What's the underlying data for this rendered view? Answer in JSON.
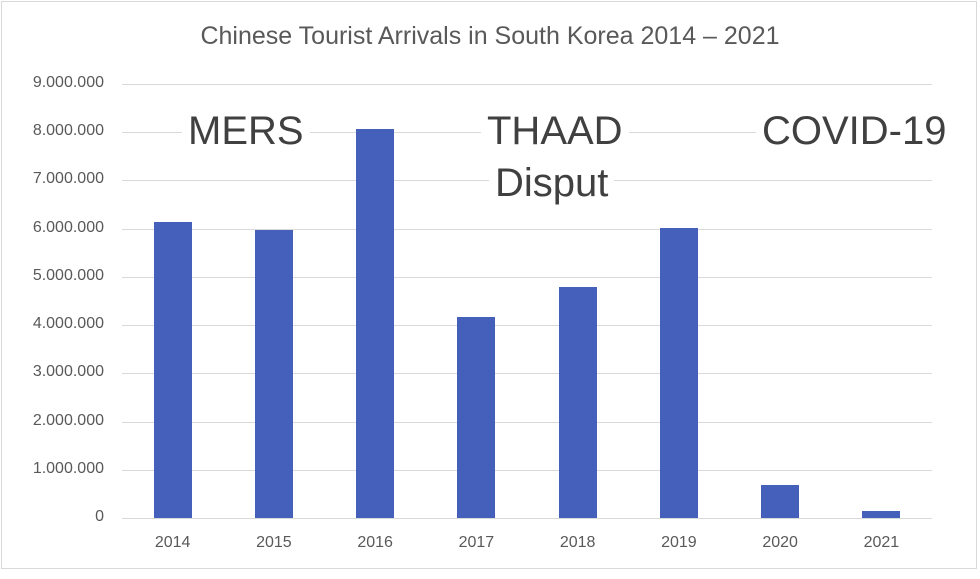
{
  "chart_data": {
    "type": "bar",
    "title": "Chinese Tourist Arrivals in South Korea 2014 – 2021",
    "xlabel": "",
    "ylabel": "",
    "categories": [
      "2014",
      "2015",
      "2016",
      "2017",
      "2018",
      "2019",
      "2020",
      "2021"
    ],
    "values": [
      6140000,
      5980000,
      8070000,
      4170000,
      4790000,
      6020000,
      690000,
      150000
    ],
    "ylim": [
      0,
      9000000
    ],
    "yticks": [
      0,
      1000000,
      2000000,
      3000000,
      4000000,
      5000000,
      6000000,
      7000000,
      8000000,
      9000000
    ],
    "ytick_labels": [
      "0",
      "1.000.000",
      "2.000.000",
      "3.000.000",
      "4.000.000",
      "5.000.000",
      "6.000.000",
      "7.000.000",
      "8.000.000",
      "9.000.000"
    ],
    "grid": true,
    "legend": null,
    "bar_color": "#4460ba",
    "annotations": [
      {
        "text": "MERS",
        "near": "2015"
      },
      {
        "text": "THAAD Disput",
        "near": "2017"
      },
      {
        "text": "COVID-19",
        "near": "2020-2021"
      }
    ]
  },
  "labels": {
    "title": "Chinese Tourist Arrivals in South Korea 2014 – 2021",
    "ann_mers": "MERS",
    "ann_thaad_1": "THAAD",
    "ann_thaad_2": "Disput",
    "ann_covid": "COVID-19"
  }
}
